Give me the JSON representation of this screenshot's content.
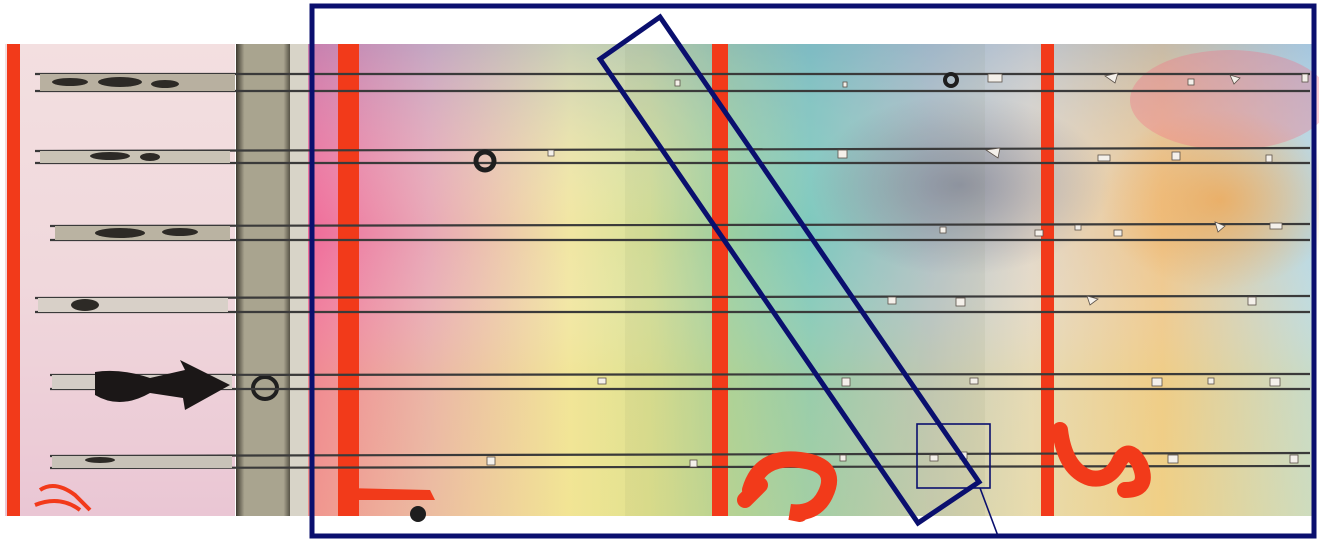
{
  "image": {
    "description_colors": {
      "background": "#ffffff",
      "frame_stroke": "#0a0f6e",
      "red_line": "#f23a1a",
      "crystal_line": "#3a3a3a"
    },
    "labels": {
      "handwritten_digit_1": "1",
      "handwritten_digit_2": "2",
      "handwritten_digit_3": "3"
    }
  }
}
